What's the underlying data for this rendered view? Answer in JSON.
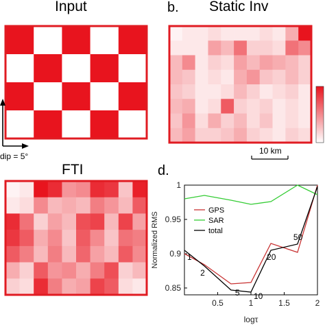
{
  "panels": {
    "input": {
      "title": "Input"
    },
    "static": {
      "letter": "b.",
      "title": "Static Inv",
      "scale_label": "10 km"
    },
    "fti": {
      "title": "FTI"
    },
    "rms": {
      "letter": "d."
    },
    "dip_label": "dip = 5°"
  },
  "colors": {
    "red": "#e8141e",
    "frame": "#e01b22",
    "gps": "#c83232",
    "sar": "#33cc33",
    "total": "#000000"
  },
  "grids": {
    "input": [
      [
        1,
        0,
        1,
        0,
        1
      ],
      [
        0,
        1,
        0,
        1,
        0
      ],
      [
        1,
        0,
        1,
        0,
        1
      ],
      [
        0,
        1,
        0,
        1,
        0
      ]
    ],
    "static": [
      [
        0.05,
        0.1,
        0.1,
        0.15,
        0.1,
        0.1,
        0.1,
        0.15,
        0.1,
        0.35,
        1.0
      ],
      [
        0.1,
        0.1,
        0.1,
        0.4,
        0.3,
        0.6,
        0.2,
        0.2,
        0.15,
        0.6,
        0.5
      ],
      [
        0.3,
        0.5,
        0.1,
        0.2,
        0.15,
        0.4,
        0.3,
        0.4,
        0.35,
        0.3,
        0.2
      ],
      [
        0.3,
        0.25,
        0.1,
        0.15,
        0.1,
        0.35,
        0.45,
        0.25,
        0.2,
        0.3,
        0.2
      ],
      [
        0.25,
        0.2,
        0.1,
        0.1,
        0.15,
        0.3,
        0.2,
        0.1,
        0.15,
        0.2,
        0.1
      ],
      [
        0.3,
        0.35,
        0.1,
        0.15,
        0.7,
        0.2,
        0.15,
        0.2,
        0.1,
        0.15,
        0.1
      ],
      [
        0.25,
        0.45,
        0.15,
        0.35,
        0.2,
        0.3,
        0.15,
        0.25,
        0.1,
        0.15,
        0.1
      ],
      [
        0.3,
        0.4,
        0.2,
        0.2,
        0.25,
        0.35,
        0.2,
        0.15,
        0.1,
        0.2,
        0.15
      ]
    ],
    "fti": [
      [
        0.05,
        0.1,
        1.0,
        0.9,
        0.45,
        0.5,
        0.9,
        0.85,
        0.25,
        0.95
      ],
      [
        0.1,
        0.15,
        0.5,
        0.3,
        0.35,
        0.3,
        0.55,
        0.45,
        0.3,
        0.7
      ],
      [
        0.9,
        0.6,
        0.2,
        0.4,
        0.3,
        0.75,
        0.8,
        0.3,
        0.8,
        0.4
      ],
      [
        0.85,
        0.7,
        0.35,
        0.5,
        0.25,
        0.7,
        0.5,
        0.25,
        0.6,
        0.55
      ],
      [
        0.7,
        0.55,
        0.3,
        0.55,
        0.3,
        0.65,
        0.4,
        0.3,
        0.7,
        0.5
      ],
      [
        0.35,
        0.2,
        0.7,
        0.45,
        0.5,
        0.35,
        0.55,
        0.75,
        0.2,
        0.3
      ],
      [
        0.2,
        0.15,
        0.9,
        0.55,
        0.35,
        0.4,
        0.8,
        0.7,
        0.15,
        0.1
      ]
    ]
  },
  "chart_data": {
    "type": "line",
    "title": "",
    "xlabel": "logτ",
    "ylabel": "Normalized RMS",
    "xlim": [
      0,
      2
    ],
    "ylim": [
      0.84,
      1.0
    ],
    "xticks": [
      "0.5",
      "1",
      "1.5",
      "2"
    ],
    "yticks": [
      "0.85",
      "0.9",
      "0.95",
      "1"
    ],
    "legend": {
      "placement": "top-left",
      "entries": [
        "GPS",
        "SAR",
        "total"
      ]
    },
    "series": [
      {
        "name": "SAR",
        "x": [
          0,
          0.3,
          0.7,
          1.0,
          1.3,
          1.7,
          2.0
        ],
        "y": [
          0.98,
          0.985,
          0.978,
          0.972,
          0.976,
          1.0,
          0.986
        ]
      },
      {
        "name": "GPS",
        "x": [
          0,
          0.3,
          0.7,
          1.0,
          1.3,
          1.7,
          2.0
        ],
        "y": [
          0.9,
          0.884,
          0.856,
          0.858,
          0.915,
          0.902,
          1.0
        ]
      },
      {
        "name": "total",
        "x": [
          0,
          0.3,
          0.7,
          1.0,
          1.3,
          1.7,
          2.0
        ],
        "y": [
          0.905,
          0.882,
          0.847,
          0.844,
          0.905,
          0.914,
          0.998
        ]
      }
    ],
    "annotations": [
      {
        "text": "1",
        "x": 0,
        "y": 0.905
      },
      {
        "text": "2",
        "x": 0.3,
        "y": 0.882
      },
      {
        "text": "5",
        "x": 0.7,
        "y": 0.847
      },
      {
        "text": "10",
        "x": 1.0,
        "y": 0.844
      },
      {
        "text": "20",
        "x": 1.3,
        "y": 0.905
      },
      {
        "text": "50",
        "x": 1.7,
        "y": 0.914
      }
    ]
  }
}
